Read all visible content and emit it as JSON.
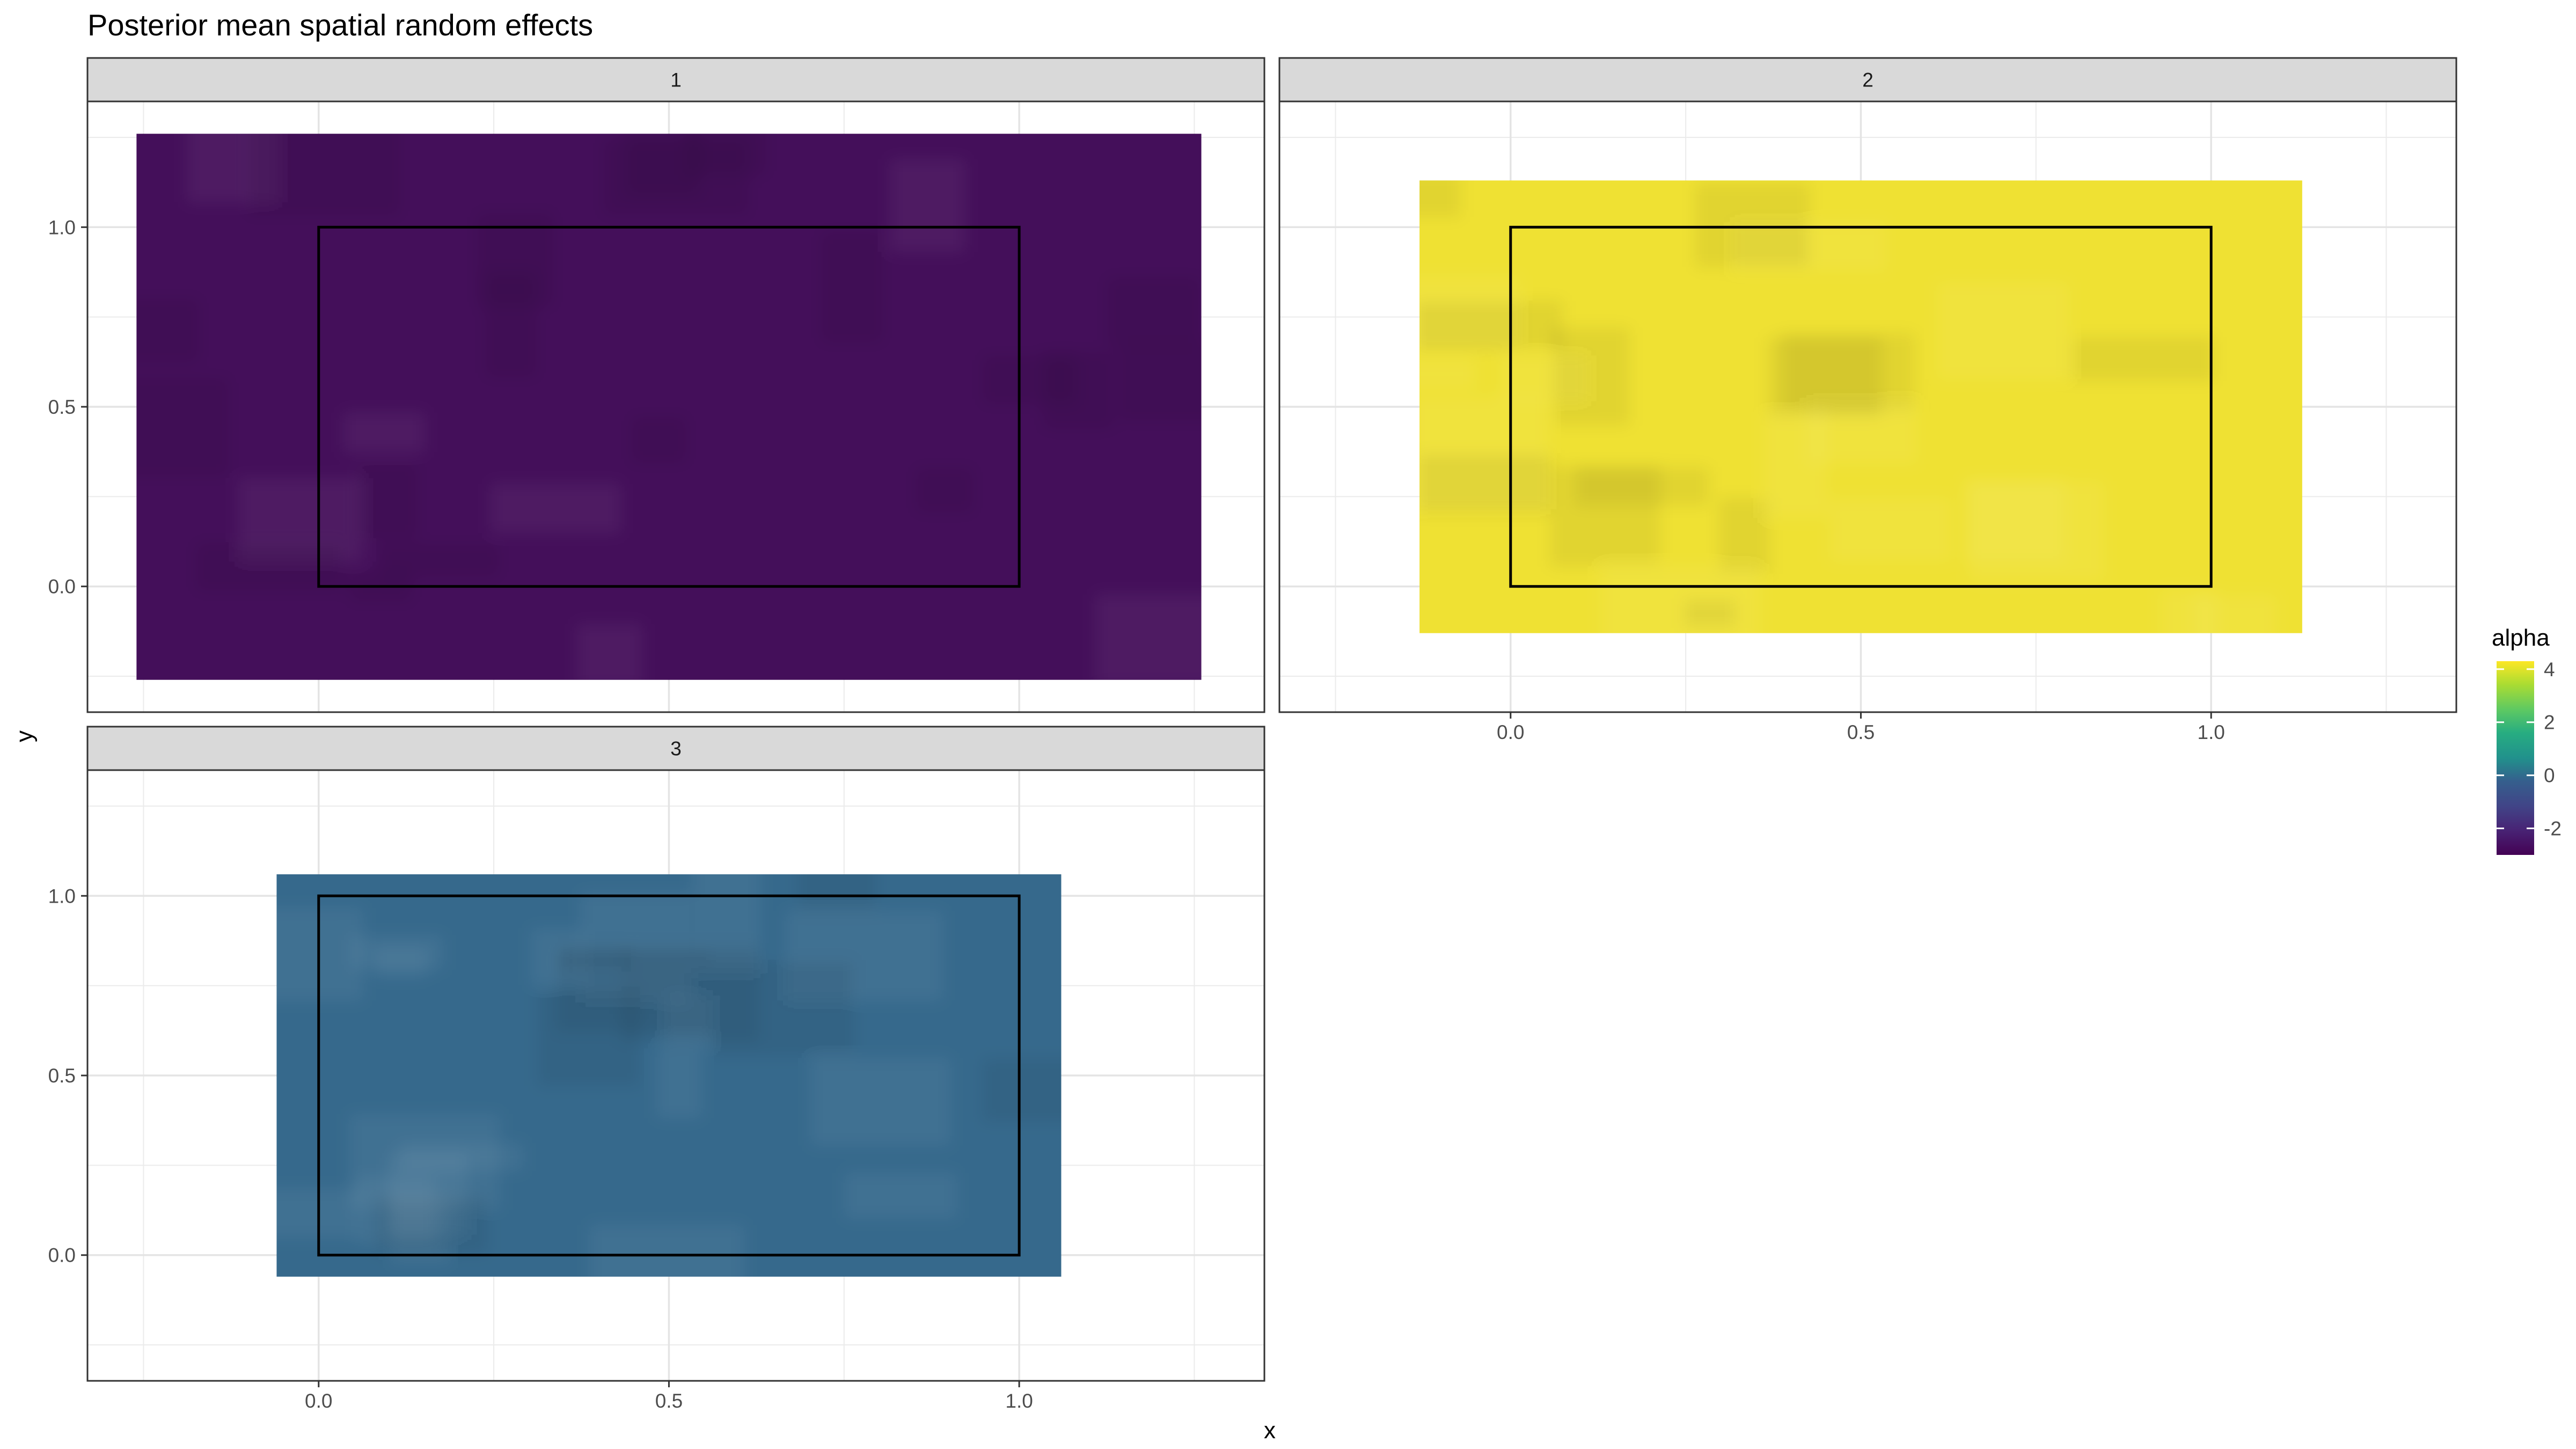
{
  "chart_data": {
    "type": "heatmap",
    "title": "Posterior mean spatial random effects",
    "xlabel": "x",
    "ylabel": "y",
    "xlim": [
      -0.33,
      1.35
    ],
    "ylim": [
      -0.35,
      1.35
    ],
    "x_ticks": [
      0.0,
      0.5,
      1.0
    ],
    "x_tick_labels": [
      "0.0",
      "0.5",
      "1.0"
    ],
    "y_ticks": [
      0.0,
      0.5,
      1.0
    ],
    "y_tick_labels": [
      "0.0",
      "0.5",
      "1.0"
    ],
    "grid": true,
    "facet_layout": "2 columns x 2 rows",
    "boundary_box": {
      "x": [
        0,
        1
      ],
      "y": [
        0,
        1
      ]
    },
    "legend": {
      "title": "alpha",
      "placement": "right",
      "colormap": "viridis",
      "range": [
        -3,
        4.3
      ],
      "ticks": [
        4,
        2,
        0,
        -2
      ],
      "tick_labels": [
        "4",
        "2",
        "0",
        "-2"
      ]
    },
    "facets": [
      {
        "label": "1",
        "mesh_x": [
          -0.26,
          1.26
        ],
        "mesh_y": [
          -0.26,
          1.26
        ],
        "mean_alpha": -2.95,
        "color": "#440f5a"
      },
      {
        "label": "2",
        "mesh_x": [
          -0.13,
          1.13
        ],
        "mesh_y": [
          -0.13,
          1.13
        ],
        "mean_alpha": 4.1,
        "color": "#efe133"
      },
      {
        "label": "3",
        "mesh_x": [
          -0.06,
          1.06
        ],
        "mesh_y": [
          -0.06,
          1.06
        ],
        "mean_alpha": -1.45,
        "color": "#36698c"
      }
    ]
  }
}
